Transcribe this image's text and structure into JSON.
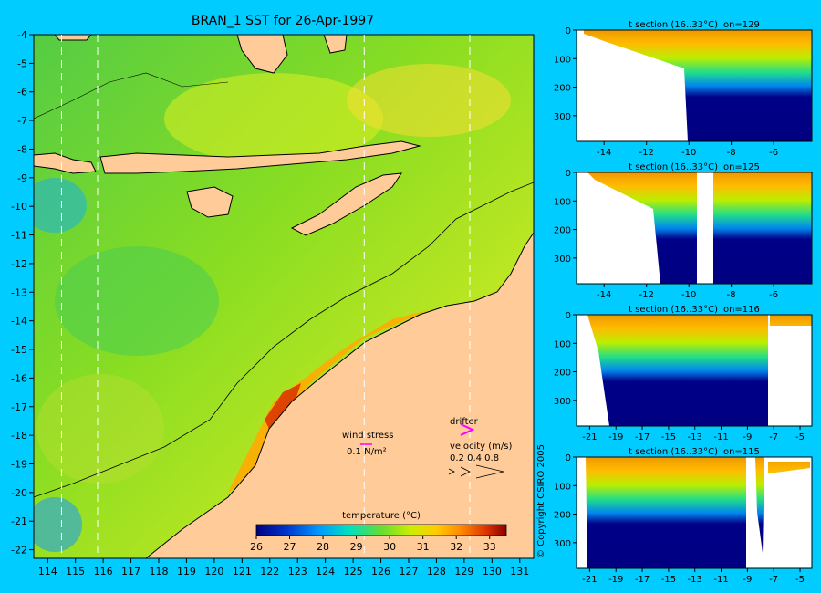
{
  "main_map": {
    "title": "BRAN_1 SST for 26-Apr-1997",
    "x_ticks": [
      "114",
      "115",
      "116",
      "117",
      "118",
      "119",
      "120",
      "121",
      "122",
      "123",
      "124",
      "125",
      "126",
      "127",
      "128",
      "129",
      "130",
      "131"
    ],
    "y_ticks": [
      "-4",
      "-5",
      "-6",
      "-7",
      "-8",
      "-9",
      "-10",
      "-11",
      "-12",
      "-13",
      "-14",
      "-15",
      "-16",
      "-17",
      "-18",
      "-19",
      "-20",
      "-21",
      "-22"
    ],
    "xlim": [
      113.5,
      131.5
    ],
    "ylim": [
      -22.3,
      -4
    ],
    "section_lines_lon": [
      114.5,
      115.8,
      125.4,
      129.2
    ],
    "colorbar": {
      "label": "temperature (°C)",
      "ticks": [
        "26",
        "27",
        "28",
        "29",
        "30",
        "31",
        "32",
        "33"
      ],
      "range": [
        26,
        33.5
      ]
    },
    "legend": {
      "wind_label": "wind stress",
      "wind_scale": "0.1 N/m²",
      "drifter_label": "drifter",
      "velocity_label": "velocity (m/s)",
      "velocity_values": "0.2 0.4 0.8"
    },
    "copyright": "© Copyright CSIRO 2005"
  },
  "sections": [
    {
      "title": "t section (16..33°C) lon=129",
      "x_ticks": [
        "-14",
        "-12",
        "-10",
        "-8",
        "-6"
      ],
      "xlim": [
        -15.3,
        -4.2
      ],
      "y_ticks": [
        "0",
        "100",
        "200",
        "300"
      ],
      "ylim": [
        0,
        390
      ]
    },
    {
      "title": "t section (16..33°C) lon=125",
      "x_ticks": [
        "-14",
        "-12",
        "-10",
        "-8",
        "-6"
      ],
      "xlim": [
        -15.3,
        -4.2
      ],
      "y_ticks": [
        "0",
        "100",
        "200",
        "300"
      ],
      "ylim": [
        0,
        390
      ]
    },
    {
      "title": "t section (16..33°C) lon=116",
      "x_ticks": [
        "-21",
        "-19",
        "-17",
        "-15",
        "-13",
        "-11",
        "-9",
        "-7",
        "-5"
      ],
      "xlim": [
        -22,
        -4.1
      ],
      "y_ticks": [
        "0",
        "100",
        "200",
        "300"
      ],
      "ylim": [
        0,
        390
      ]
    },
    {
      "title": "t section (16..33°C) lon=115",
      "x_ticks": [
        "-21",
        "-19",
        "-17",
        "-15",
        "-13",
        "-11",
        "-9",
        "-7",
        "-5"
      ],
      "xlim": [
        -22,
        -4.1
      ],
      "y_ticks": [
        "0",
        "100",
        "200",
        "300"
      ],
      "ylim": [
        0,
        390
      ]
    }
  ],
  "colors": {
    "background": "#00ccff",
    "land": "#ffcc99",
    "deep_water": "#000080"
  }
}
